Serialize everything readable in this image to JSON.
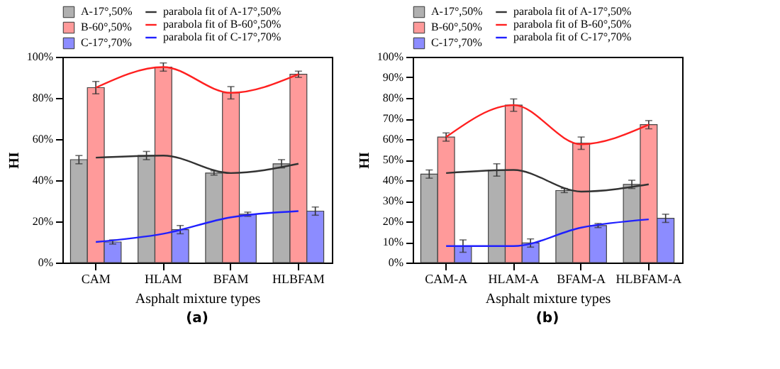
{
  "chart_data": [
    {
      "type": "bar",
      "xlabel": "Asphalt mixture types",
      "ylabel": "HI",
      "annotations": [
        "(a)"
      ],
      "categories": [
        "CAM",
        "HLAM",
        "BFAM",
        "HLBFAM"
      ],
      "ylim": [
        0,
        100
      ],
      "yticks": [
        {
          "value": 0,
          "label": "0%"
        },
        {
          "value": 20,
          "label": "20%"
        },
        {
          "value": 40,
          "label": "40%"
        },
        {
          "value": 60,
          "label": "60%"
        },
        {
          "value": 80,
          "label": "80%"
        },
        {
          "value": 100,
          "label": "100%"
        }
      ],
      "grid": false,
      "legend": "top",
      "marker": "none",
      "series": [
        {
          "name": "A-17°,50%",
          "color": "#b0b0b0",
          "values": [
            50,
            52,
            43.5,
            48
          ],
          "errors": [
            2,
            2,
            1,
            2
          ]
        },
        {
          "name": "B-60°,50%",
          "color": "#ff9a9a",
          "values": [
            85,
            95,
            82.5,
            91.5
          ],
          "errors": [
            3,
            2,
            3,
            1.5
          ]
        },
        {
          "name": "C-17°,70%",
          "color": "#8c8cff",
          "values": [
            10,
            16,
            23.5,
            25
          ],
          "errors": [
            1,
            2,
            1,
            2
          ]
        },
        {
          "name": "parabola fit of A-17°,50%",
          "type": "line",
          "color": "#333333",
          "values": [
            51,
            52,
            43.5,
            48
          ]
        },
        {
          "name": "parabola fit of B-60°,50%",
          "type": "line",
          "color": "#ff2020",
          "values": [
            85,
            95,
            82.5,
            91.5
          ]
        },
        {
          "name": "parabola fit of C-17°,70%",
          "type": "line",
          "color": "#2020ff",
          "values": [
            10,
            14,
            22,
            25
          ]
        }
      ]
    },
    {
      "type": "bar",
      "xlabel": "Asphalt mixture types",
      "ylabel": "HI",
      "annotations": [
        "(b)"
      ],
      "categories": [
        "CAM-A",
        "HLAM-A",
        "BFAM-A",
        "HLBFAM-A"
      ],
      "ylim": [
        0,
        100
      ],
      "yticks": [
        {
          "value": 0,
          "label": "0%"
        },
        {
          "value": 10,
          "label": "10%"
        },
        {
          "value": 20,
          "label": "20%"
        },
        {
          "value": 30,
          "label": "30%"
        },
        {
          "value": 40,
          "label": "40%"
        },
        {
          "value": 50,
          "label": "50%"
        },
        {
          "value": 60,
          "label": "60%"
        },
        {
          "value": 70,
          "label": "70%"
        },
        {
          "value": 80,
          "label": "80%"
        },
        {
          "value": 90,
          "label": "90%"
        },
        {
          "value": 100,
          "label": "100%"
        }
      ],
      "grid": false,
      "legend": "top",
      "marker": "none",
      "series": [
        {
          "name": "A-17°,50%",
          "color": "#b0b0b0",
          "values": [
            43,
            45,
            35,
            38
          ],
          "errors": [
            2,
            3,
            1,
            2
          ]
        },
        {
          "name": "B-60°,50%",
          "color": "#ff9a9a",
          "values": [
            61,
            76.5,
            58,
            67
          ],
          "errors": [
            2,
            3,
            3,
            2
          ]
        },
        {
          "name": "C-17°,70%",
          "color": "#8c8cff",
          "values": [
            8,
            9.5,
            18,
            21.5
          ],
          "errors": [
            3,
            2,
            1,
            2
          ]
        },
        {
          "name": "parabola fit of A-17°,50%",
          "type": "line",
          "color": "#333333",
          "values": [
            43.5,
            45,
            34.5,
            38
          ]
        },
        {
          "name": "parabola fit of B-60°,50%",
          "type": "line",
          "color": "#ff2020",
          "values": [
            61,
            76.5,
            57.5,
            67
          ]
        },
        {
          "name": "parabola fit of C-17°,70%",
          "type": "line",
          "color": "#2020ff",
          "values": [
            8,
            8,
            17,
            21
          ]
        }
      ]
    }
  ]
}
